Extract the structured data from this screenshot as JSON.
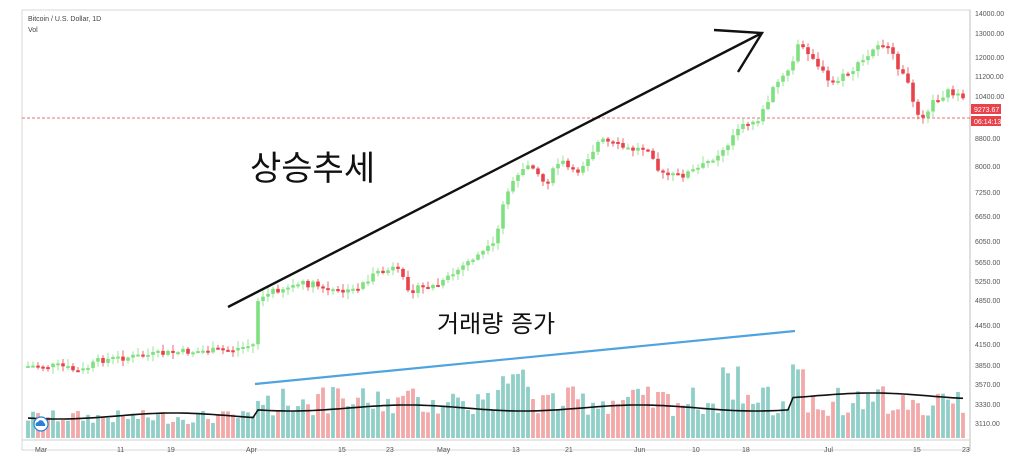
{
  "chart_data": {
    "type": "candlestick",
    "title": "Bitcoin / U.S. Dollar, 1D",
    "volume_label": "Vol",
    "y_ticks": [
      "14000.00",
      "13000.00",
      "12000.00",
      "11200.00",
      "10400.00",
      "9273.67",
      "8800.00",
      "8000.00",
      "7250.00",
      "6650.00",
      "6050.00",
      "5650.00",
      "5250.00",
      "4850.00",
      "4450.00",
      "4150.00",
      "3850.00",
      "3570.00",
      "3330.00",
      "3110.00"
    ],
    "x_ticks": [
      "Mar",
      "11",
      "19",
      "Apr",
      "15",
      "23",
      "May",
      "13",
      "21",
      "Jun",
      "10",
      "18",
      "Jul",
      "15",
      "23"
    ],
    "last_price": "9273.67",
    "countdown": "06:14:13",
    "annotations": {
      "trend": "상승추세",
      "volume": "거래량 증가"
    },
    "colors": {
      "up": "#7fe07f",
      "down": "#e8424a",
      "volume_up": "#8fcfc8",
      "volume_down": "#f2a9a9",
      "moving_average": "#111111",
      "trend_arrow": "#111111",
      "volume_trend_line": "#4ea3e0",
      "price_line": "#e8424a"
    },
    "grid": false
  }
}
